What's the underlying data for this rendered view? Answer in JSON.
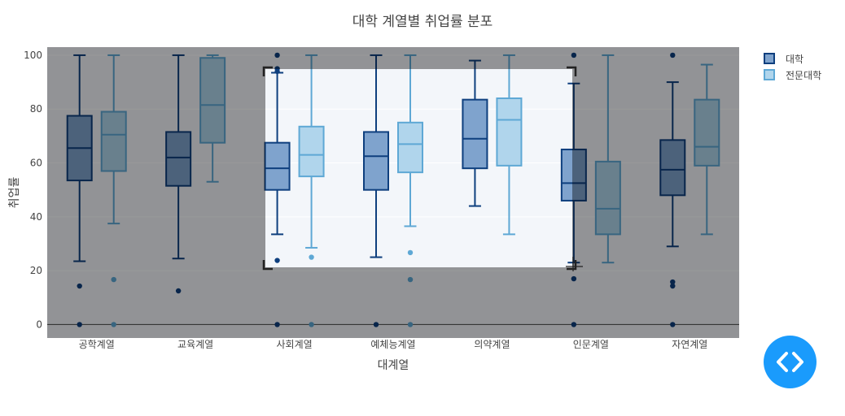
{
  "chart_data": {
    "type": "box",
    "title": "대학 계열별 취업률 분포",
    "xlabel": "대계열",
    "ylabel": "취업률",
    "ylim": [
      -5,
      103
    ],
    "yticks": [
      0,
      20,
      40,
      60,
      80,
      100
    ],
    "categories": [
      "공학계열",
      "교육계열",
      "사회계열",
      "예체능계열",
      "의약계열",
      "인문계열",
      "자연계열"
    ],
    "legend_position": "top-right",
    "series": [
      {
        "name": "대학",
        "fill": "#7fa3cd",
        "stroke": "#0e3f7e",
        "boxes": [
          {
            "min": 23.5,
            "q1": 53.5,
            "median": 65.5,
            "q3": 77.5,
            "max": 100,
            "outliers": [
              14.3,
              0
            ]
          },
          {
            "min": 24.5,
            "q1": 51.5,
            "median": 62,
            "q3": 71.5,
            "max": 100,
            "outliers": [
              12.5
            ]
          },
          {
            "min": 33.5,
            "q1": 50,
            "median": 58,
            "q3": 67.5,
            "max": 93.5,
            "outliers": [
              100,
              95,
              94,
              23.8,
              0
            ]
          },
          {
            "min": 25,
            "q1": 50,
            "median": 62.5,
            "q3": 71.5,
            "max": 100,
            "outliers": [
              0
            ]
          },
          {
            "min": 44,
            "q1": 58,
            "median": 69,
            "q3": 83.5,
            "max": 98,
            "outliers": []
          },
          {
            "min": 23,
            "q1": 46,
            "median": 52.5,
            "q3": 65,
            "max": 89.5,
            "outliers": [
              100,
              17,
              0
            ]
          },
          {
            "min": 29,
            "q1": 48,
            "median": 57.5,
            "q3": 68.5,
            "max": 90,
            "outliers": [
              100,
              15.8,
              14.3,
              0
            ]
          }
        ]
      },
      {
        "name": "전문대학",
        "fill": "#b0d5ec",
        "stroke": "#5ea8d5",
        "boxes": [
          {
            "min": 37.5,
            "q1": 57,
            "median": 70.5,
            "q3": 79,
            "max": 100,
            "outliers": [
              16.7,
              0
            ]
          },
          {
            "min": 53,
            "q1": 67.5,
            "median": 81.5,
            "q3": 99,
            "max": 100,
            "outliers": []
          },
          {
            "min": 28.5,
            "q1": 55,
            "median": 63,
            "q3": 73.5,
            "max": 100,
            "outliers": [
              25,
              0
            ]
          },
          {
            "min": 36.5,
            "q1": 56.5,
            "median": 67,
            "q3": 75,
            "max": 100,
            "outliers": [
              26.7,
              16.7,
              0
            ]
          },
          {
            "min": 33.5,
            "q1": 59,
            "median": 76,
            "q3": 84,
            "max": 100,
            "outliers": []
          },
          {
            "min": 23,
            "q1": 33.5,
            "median": 43,
            "q3": 60.5,
            "max": 100,
            "outliers": []
          },
          {
            "min": 33.5,
            "q1": 59,
            "median": 66,
            "q3": 83.5,
            "max": 96.5,
            "outliers": []
          }
        ]
      }
    ]
  },
  "ui": {
    "code_button_icon": "code-icon",
    "selection_icon": "crop-selection-icon"
  }
}
